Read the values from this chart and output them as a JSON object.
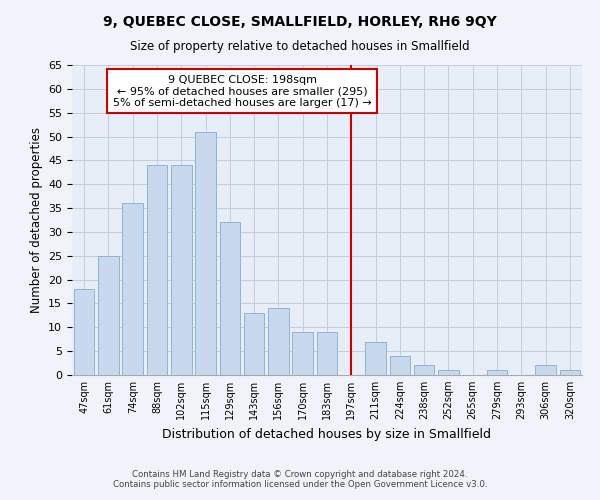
{
  "title": "9, QUEBEC CLOSE, SMALLFIELD, HORLEY, RH6 9QY",
  "subtitle": "Size of property relative to detached houses in Smallfield",
  "xlabel": "Distribution of detached houses by size in Smallfield",
  "ylabel": "Number of detached properties",
  "bar_labels": [
    "47sqm",
    "61sqm",
    "74sqm",
    "88sqm",
    "102sqm",
    "115sqm",
    "129sqm",
    "143sqm",
    "156sqm",
    "170sqm",
    "183sqm",
    "197sqm",
    "211sqm",
    "224sqm",
    "238sqm",
    "252sqm",
    "265sqm",
    "279sqm",
    "293sqm",
    "306sqm",
    "320sqm"
  ],
  "bar_values": [
    18,
    25,
    36,
    44,
    44,
    51,
    32,
    13,
    14,
    9,
    9,
    0,
    7,
    4,
    2,
    1,
    0,
    1,
    0,
    2,
    1
  ],
  "bar_color": "#c8d9ee",
  "bar_edge_color": "#8db4d8",
  "vline_x": 11,
  "vline_color": "#cc0000",
  "annotation_title": "9 QUEBEC CLOSE: 198sqm",
  "annotation_line1": "← 95% of detached houses are smaller (295)",
  "annotation_line2": "5% of semi-detached houses are larger (17) →",
  "annotation_box_color": "#ffffff",
  "annotation_box_edge": "#cc0000",
  "ylim": [
    0,
    65
  ],
  "yticks": [
    0,
    5,
    10,
    15,
    20,
    25,
    30,
    35,
    40,
    45,
    50,
    55,
    60,
    65
  ],
  "footer_line1": "Contains HM Land Registry data © Crown copyright and database right 2024.",
  "footer_line2": "Contains public sector information licensed under the Open Government Licence v3.0.",
  "bg_color": "#f0f4fa",
  "plot_bg_color": "#e8eef8"
}
